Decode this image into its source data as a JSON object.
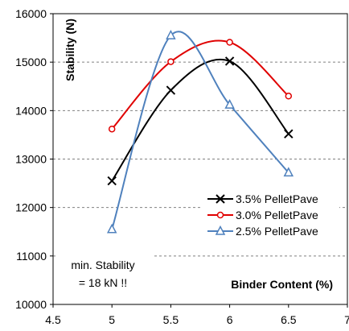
{
  "chart_data": {
    "type": "line",
    "xlabel": "Binder Content (%)",
    "ylabel": "Stability (N)",
    "xlim": [
      4.5,
      7
    ],
    "ylim": [
      10000,
      16000
    ],
    "x_ticks": [
      "4.5",
      "5",
      "5.5",
      "6",
      "6.5",
      "7"
    ],
    "y_ticks": [
      "10000",
      "11000",
      "12000",
      "13000",
      "14000",
      "15000",
      "16000"
    ],
    "x": [
      5,
      5.5,
      6,
      6.5
    ],
    "grid": "horizontal dashed",
    "legend_position": "bottom-right",
    "annotation": "min. Stability\n= 18 kN !!",
    "series": [
      {
        "name": "3.5% PelletPave",
        "values": [
          12550,
          14420,
          15020,
          13520
        ],
        "color": "#000000",
        "marker": "x"
      },
      {
        "name": "3.0% PelletPave",
        "values": [
          13620,
          15010,
          15410,
          14300
        ],
        "color": "#e00000",
        "marker": "circle"
      },
      {
        "name": "2.5% PelletPave",
        "values": [
          11550,
          15550,
          14120,
          12720
        ],
        "color": "#4f81bd",
        "marker": "triangle"
      }
    ]
  }
}
